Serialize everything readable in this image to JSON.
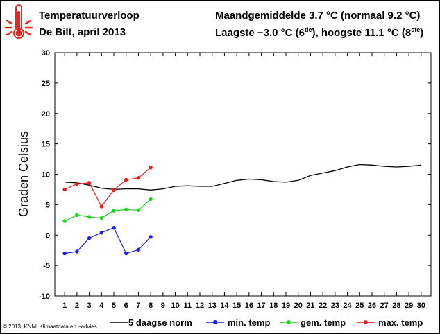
{
  "header": {
    "title": "Temperatuurverloop",
    "subtitle": "De Bilt, april 2013",
    "mean_line": "Maandgemiddelde 3.7 °C (normaal 9.2 °C)",
    "extremes_main": "Laagste −3.0 °C (6",
    "extremes_sup1": "de",
    "extremes_mid": "), hoogste 11.1 °C (8",
    "extremes_sup2": "ste",
    "extremes_end": ")"
  },
  "footer": {
    "copyright": "© 2013, KNMI Klimaatdata en –advies"
  },
  "icon": {
    "name": "thermometer-hot-icon",
    "color": "#e8281e"
  },
  "chart_data": {
    "type": "line",
    "ylabel": "Graden Celsius",
    "xlabel": "",
    "ylim": [
      -10,
      30
    ],
    "yticks": [
      -10,
      -5,
      0,
      5,
      10,
      15,
      20,
      25,
      30
    ],
    "xlim": [
      0.2,
      30.8
    ],
    "xticks": [
      1,
      2,
      3,
      4,
      5,
      6,
      7,
      8,
      9,
      10,
      11,
      12,
      13,
      14,
      15,
      16,
      17,
      18,
      19,
      20,
      21,
      22,
      23,
      24,
      25,
      26,
      27,
      28,
      29,
      30
    ],
    "grid": false,
    "legend_position": "bottom",
    "series": [
      {
        "name": "5 daagse norm",
        "color": "#000000",
        "markers": false,
        "x": [
          1,
          2,
          3,
          4,
          5,
          6,
          7,
          8,
          9,
          10,
          11,
          12,
          13,
          14,
          15,
          16,
          17,
          18,
          19,
          20,
          21,
          22,
          23,
          24,
          25,
          26,
          27,
          28,
          29,
          30
        ],
        "values": [
          8.7,
          8.6,
          8.2,
          7.7,
          7.5,
          7.6,
          7.6,
          7.4,
          7.6,
          8.0,
          8.1,
          8.0,
          8.0,
          8.5,
          9.0,
          9.2,
          9.1,
          8.8,
          8.7,
          9.0,
          9.8,
          10.2,
          10.6,
          11.2,
          11.6,
          11.5,
          11.3,
          11.2,
          11.3,
          11.5
        ]
      },
      {
        "name": "min. temp",
        "color": "#1e1ee6",
        "markers": true,
        "x": [
          1,
          2,
          3,
          4,
          5,
          6,
          7,
          8
        ],
        "values": [
          -3.0,
          -2.7,
          -0.5,
          0.4,
          1.2,
          -3.0,
          -2.4,
          -0.3
        ]
      },
      {
        "name": "gem. temp",
        "color": "#1ed21e",
        "markers": true,
        "x": [
          1,
          2,
          3,
          4,
          5,
          6,
          7,
          8
        ],
        "values": [
          2.3,
          3.3,
          3.0,
          2.8,
          4.0,
          4.2,
          4.1,
          5.9
        ]
      },
      {
        "name": "max. temp",
        "color": "#e61e1e",
        "markers": true,
        "x": [
          1,
          2,
          3,
          4,
          5,
          6,
          7,
          8
        ],
        "values": [
          7.5,
          8.4,
          8.6,
          4.7,
          7.4,
          9.1,
          9.4,
          11.1
        ]
      }
    ]
  }
}
